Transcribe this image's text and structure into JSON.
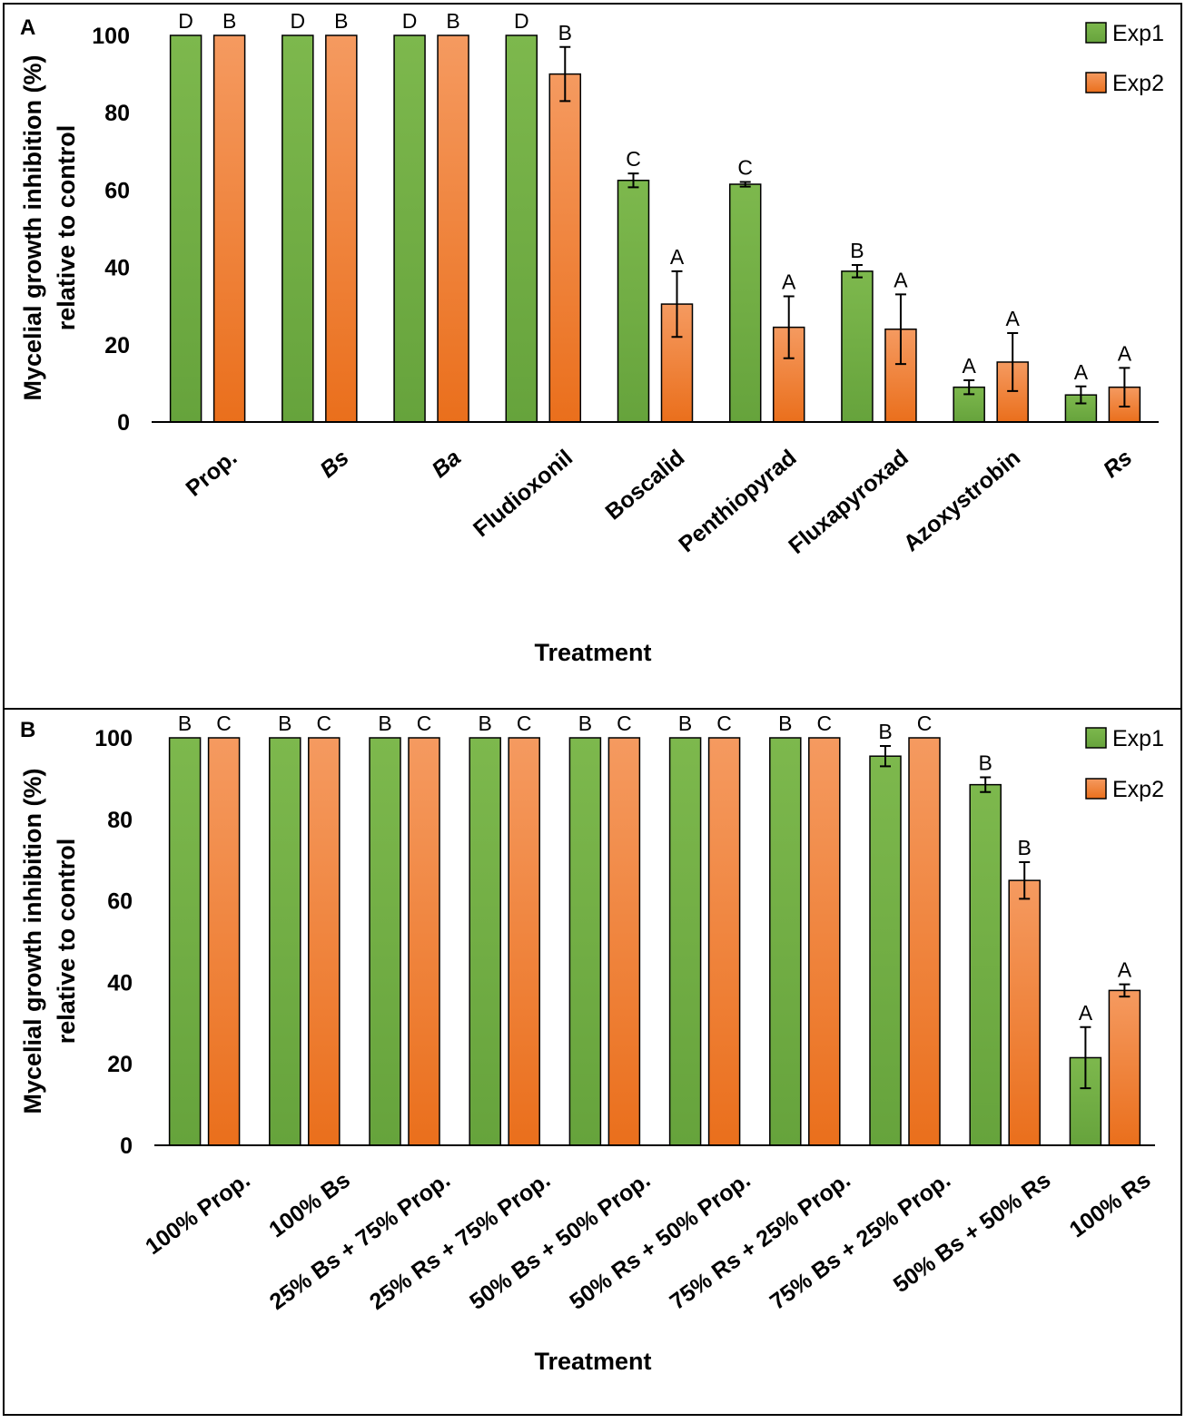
{
  "colors": {
    "exp1": "#70ad47",
    "exp1_light": "#7fb950",
    "exp2": "#ed7d31",
    "exp2_light": "#f29a62"
  },
  "chart_data": [
    {
      "type": "bar",
      "panel": "A",
      "ylabel_line1": "Mycelial growth inhibition (%)",
      "ylabel_line2": "relative to control",
      "xlabel": "Treatment",
      "ylim": [
        0,
        100
      ],
      "yticks": [
        0,
        20,
        40,
        60,
        80,
        100
      ],
      "categories": [
        "Prop.",
        "Bs",
        "Ba",
        "Fludioxonil",
        "Boscalid",
        "Penthiopyrad",
        "Fluxapyroxad",
        "Azoxystrobin",
        "Rs"
      ],
      "italic": [
        false,
        true,
        true,
        false,
        false,
        false,
        false,
        false,
        true
      ],
      "legend_position": "top-right",
      "series": [
        {
          "name": "Exp1",
          "values": [
            100,
            100,
            100,
            100,
            62.5,
            61.5,
            39,
            9,
            7
          ],
          "errors": [
            0,
            0,
            0,
            0,
            1.8,
            0.6,
            1.6,
            1.8,
            2.2
          ],
          "letters": [
            "D",
            "D",
            "D",
            "D",
            "C",
            "C",
            "B",
            "A",
            "A"
          ]
        },
        {
          "name": "Exp2",
          "values": [
            100,
            100,
            100,
            90,
            30.5,
            24.5,
            24,
            15.5,
            9
          ],
          "errors": [
            0,
            0,
            0,
            7,
            8.5,
            8,
            9,
            7.5,
            5
          ],
          "letters": [
            "B",
            "B",
            "B",
            "B",
            "A",
            "A",
            "A",
            "A",
            "A"
          ]
        }
      ]
    },
    {
      "type": "bar",
      "panel": "B",
      "ylabel_line1": "Mycelial growth inhibition (%)",
      "ylabel_line2": "relative to control",
      "xlabel": "Treatment",
      "ylim": [
        0,
        100
      ],
      "yticks": [
        0,
        20,
        40,
        60,
        80,
        100
      ],
      "categories": [
        "100% Prop.",
        "100% Bs",
        "25% Bs + 75% Prop.",
        "25% Rs + 75% Prop.",
        "50% Bs + 50% Prop.",
        "50% Rs + 50% Prop.",
        "75% Rs + 25% Prop.",
        "75% Bs + 25% Prop.",
        "50% Bs + 50% Rs",
        "100% Rs"
      ],
      "legend_position": "top-right",
      "series": [
        {
          "name": "Exp1",
          "values": [
            100,
            100,
            100,
            100,
            100,
            100,
            100,
            95.5,
            88.5,
            21.5
          ],
          "errors": [
            0,
            0,
            0,
            0,
            0,
            0,
            0,
            2.5,
            1.8,
            7.5
          ],
          "letters": [
            "B",
            "B",
            "B",
            "B",
            "B",
            "B",
            "B",
            "B",
            "B",
            "A"
          ]
        },
        {
          "name": "Exp2",
          "values": [
            100,
            100,
            100,
            100,
            100,
            100,
            100,
            100,
            65,
            38
          ],
          "errors": [
            0,
            0,
            0,
            0,
            0,
            0,
            0,
            0,
            4.5,
            1.5
          ],
          "letters": [
            "C",
            "C",
            "C",
            "C",
            "C",
            "C",
            "C",
            "C",
            "B",
            "A"
          ]
        }
      ]
    }
  ]
}
